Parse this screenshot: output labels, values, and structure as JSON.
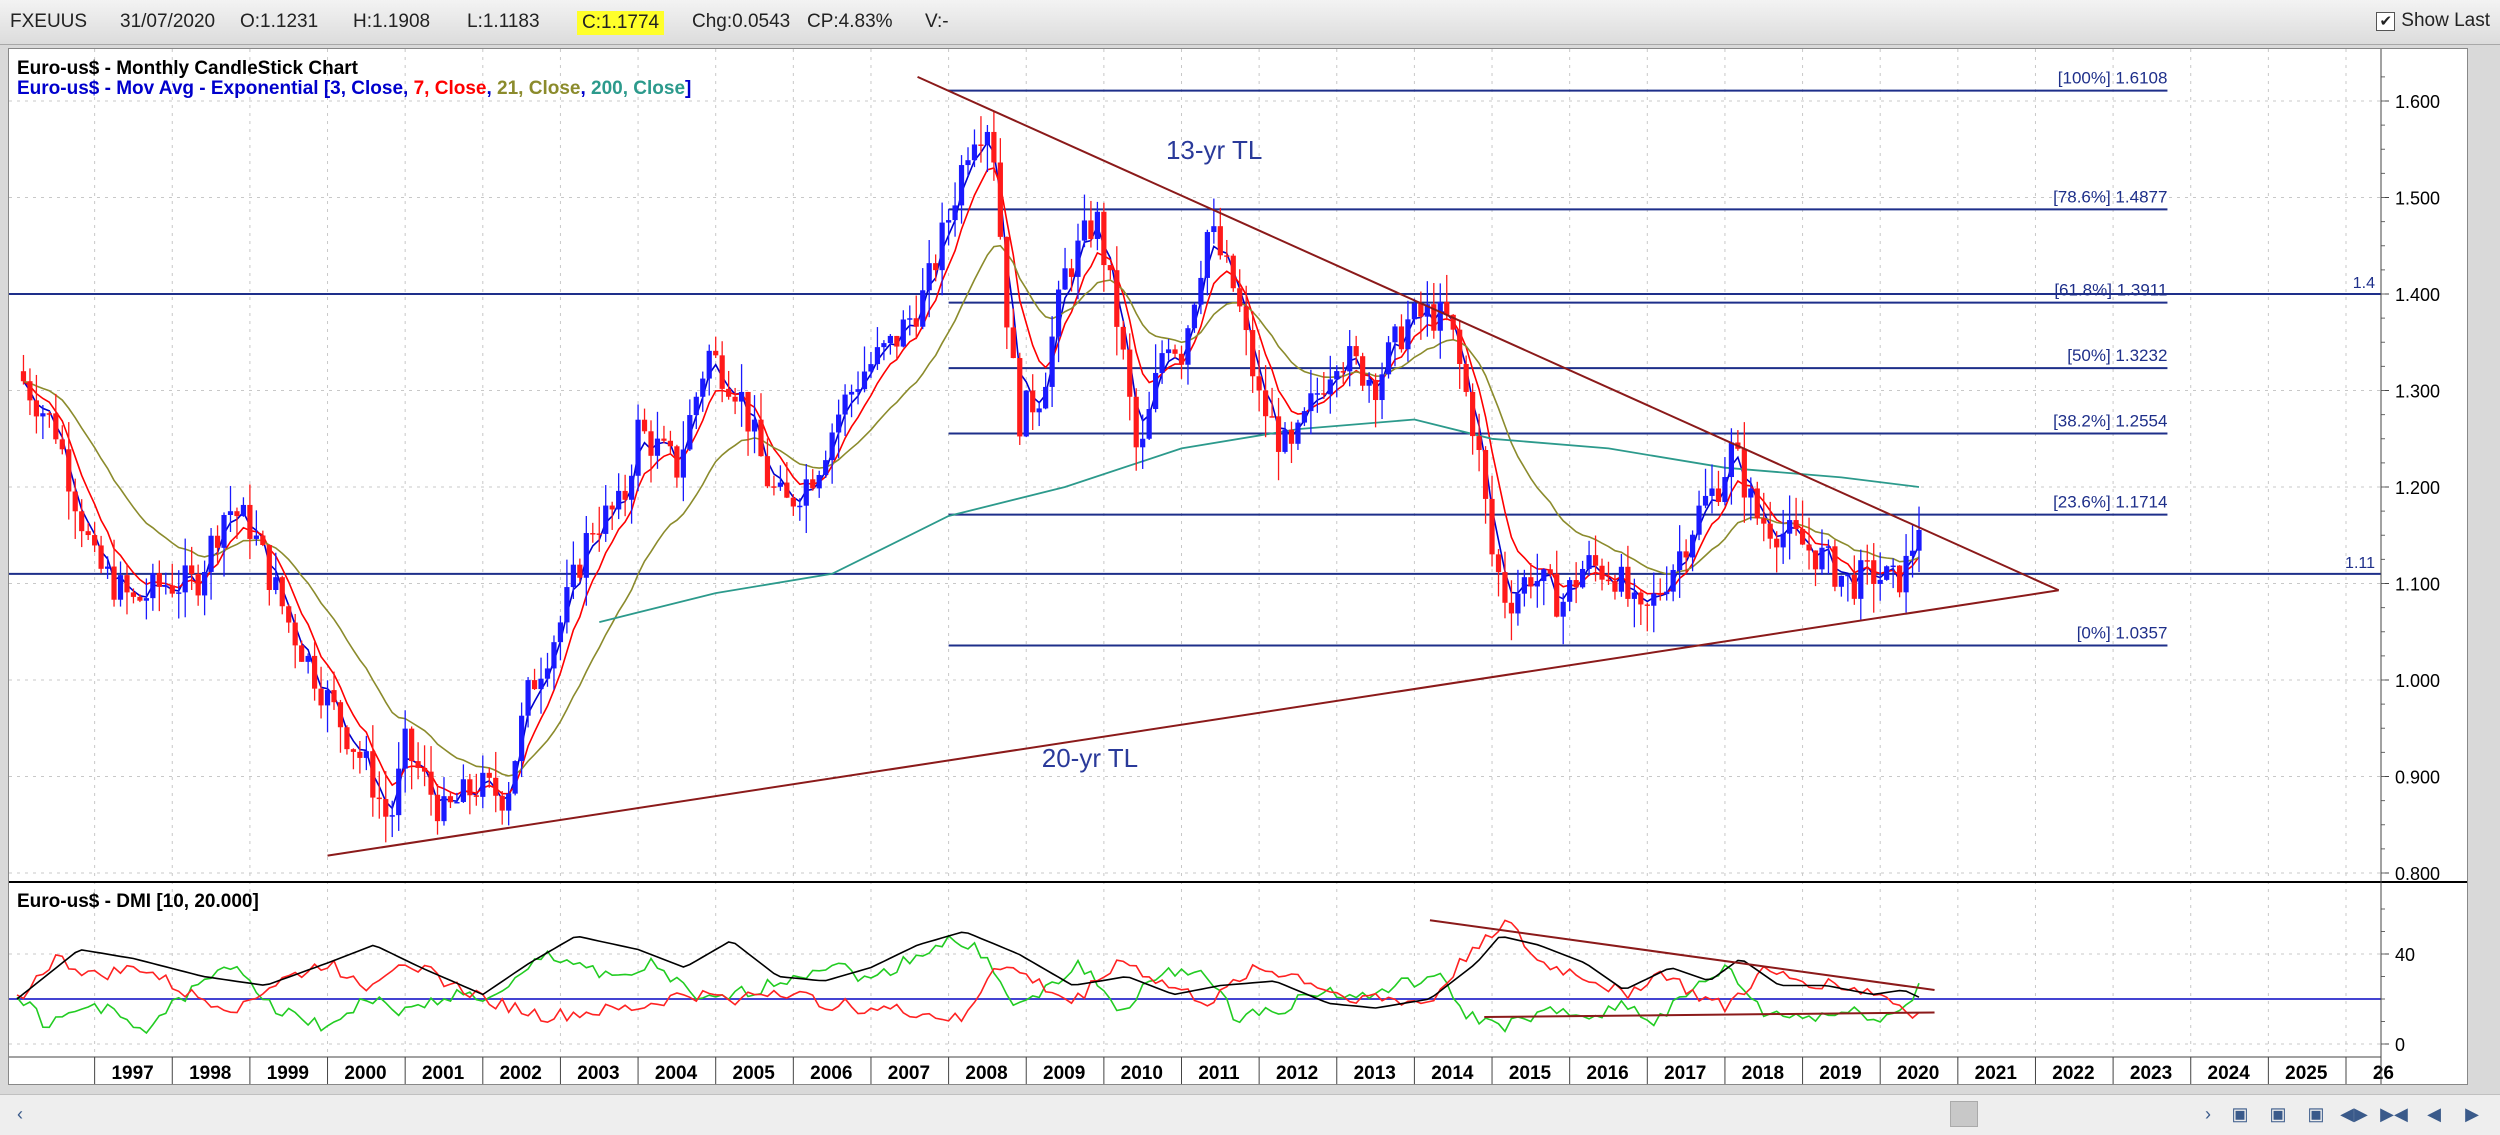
{
  "toolbar": {
    "symbol": "FXEUUS",
    "date": "31/07/2020",
    "open": "O:1.1231",
    "high": "H:1.1908",
    "low": "L:1.1183",
    "close": "C:1.1774",
    "change": "Chg:0.0543",
    "change_pct": "CP:4.83%",
    "volume": "V:-",
    "show_last_label": "Show Last",
    "show_last_checked": "✔"
  },
  "colors": {
    "bull_candle": "#1a1aff",
    "bear_candle": "#ff1a1a",
    "ema3": "#0000cc",
    "ema7": "#ff0000",
    "ema21": "#8b8b2c",
    "ema200": "#2c9a8c",
    "fib_line": "#1e2f8a",
    "trendline": "#8b1a1a",
    "dmi_adx": "#000000",
    "dmi_plus": "#22cc22",
    "dmi_minus": "#ff2222"
  },
  "chart_data": [
    {
      "type": "candlestick",
      "title": "Euro-us$ - Monthly CandleStick Chart",
      "subtitle_prefix": "Euro-us$ - Mov Avg - Exponential [",
      "subtitle_parts": [
        {
          "text": "3, Close",
          "color": "#0000cc"
        },
        {
          "text": ", ",
          "color": "#0000cc"
        },
        {
          "text": "7, Close",
          "color": "#ff0000"
        },
        {
          "text": ", ",
          "color": "#0000cc"
        },
        {
          "text": "21, Close",
          "color": "#8b8b2c"
        },
        {
          "text": ", ",
          "color": "#0000cc"
        },
        {
          "text": "200, Close",
          "color": "#2c9a8c"
        },
        {
          "text": "]",
          "color": "#0000cc"
        }
      ],
      "x_range": [
        1996.0,
        2026.0
      ],
      "ylim": [
        0.8,
        1.64
      ],
      "y_ticks": [
        "0.800",
        "0.900",
        "1.000",
        "1.100",
        "1.200",
        "1.300",
        "1.400",
        "1.500",
        "1.600"
      ],
      "x_tick_labels": [
        "1997",
        "1998",
        "1999",
        "2000",
        "2001",
        "2002",
        "2003",
        "2004",
        "2005",
        "2006",
        "2007",
        "2008",
        "2009",
        "2010",
        "2011",
        "2012",
        "2013",
        "2014",
        "2015",
        "2016",
        "2017",
        "2018",
        "2019",
        "2020",
        "2021",
        "2022",
        "2023",
        "2024",
        "2025",
        "26"
      ],
      "price_path": [
        [
          1996.0,
          1.32
        ],
        [
          1996.5,
          1.26
        ],
        [
          1997.0,
          1.12
        ],
        [
          1997.5,
          1.08
        ],
        [
          1997.9,
          1.1
        ],
        [
          1998.3,
          1.1
        ],
        [
          1998.7,
          1.18
        ],
        [
          1999.0,
          1.16
        ],
        [
          1999.5,
          1.06
        ],
        [
          2000.0,
          0.98
        ],
        [
          2000.5,
          0.91
        ],
        [
          2000.8,
          0.85
        ],
        [
          2001.0,
          0.93
        ],
        [
          2001.5,
          0.86
        ],
        [
          2001.9,
          0.89
        ],
        [
          2002.3,
          0.88
        ],
        [
          2002.6,
          0.99
        ],
        [
          2003.0,
          1.06
        ],
        [
          2003.4,
          1.16
        ],
        [
          2003.8,
          1.18
        ],
        [
          2004.0,
          1.26
        ],
        [
          2004.5,
          1.22
        ],
        [
          2004.9,
          1.34
        ],
        [
          2005.3,
          1.3
        ],
        [
          2005.7,
          1.2
        ],
        [
          2005.9,
          1.18
        ],
        [
          2006.3,
          1.22
        ],
        [
          2006.6,
          1.28
        ],
        [
          2006.9,
          1.32
        ],
        [
          2007.3,
          1.35
        ],
        [
          2007.7,
          1.4
        ],
        [
          2008.0,
          1.48
        ],
        [
          2008.3,
          1.57
        ],
        [
          2008.55,
          1.58
        ],
        [
          2008.75,
          1.38
        ],
        [
          2008.9,
          1.27
        ],
        [
          2009.2,
          1.3
        ],
        [
          2009.5,
          1.42
        ],
        [
          2009.9,
          1.48
        ],
        [
          2010.2,
          1.36
        ],
        [
          2010.45,
          1.22
        ],
        [
          2010.8,
          1.36
        ],
        [
          2011.0,
          1.34
        ],
        [
          2011.35,
          1.47
        ],
        [
          2011.7,
          1.4
        ],
        [
          2012.0,
          1.29
        ],
        [
          2012.4,
          1.23
        ],
        [
          2012.7,
          1.29
        ],
        [
          2013.0,
          1.34
        ],
        [
          2013.5,
          1.31
        ],
        [
          2013.9,
          1.37
        ],
        [
          2014.2,
          1.38
        ],
        [
          2014.45,
          1.37
        ],
        [
          2014.8,
          1.25
        ],
        [
          2015.0,
          1.13
        ],
        [
          2015.2,
          1.08
        ],
        [
          2015.5,
          1.11
        ],
        [
          2015.9,
          1.08
        ],
        [
          2016.2,
          1.12
        ],
        [
          2016.6,
          1.11
        ],
        [
          2016.9,
          1.06
        ],
        [
          2017.0,
          1.07
        ],
        [
          2017.4,
          1.13
        ],
        [
          2017.7,
          1.18
        ],
        [
          2017.9,
          1.2
        ],
        [
          2018.1,
          1.24
        ],
        [
          2018.4,
          1.17
        ],
        [
          2018.8,
          1.15
        ],
        [
          2019.2,
          1.13
        ],
        [
          2019.6,
          1.1
        ],
        [
          2019.9,
          1.11
        ],
        [
          2020.2,
          1.1
        ],
        [
          2020.35,
          1.12
        ],
        [
          2020.55,
          1.18
        ]
      ],
      "ema200_path": [
        [
          2003.5,
          1.06
        ],
        [
          2005.0,
          1.09
        ],
        [
          2006.5,
          1.11
        ],
        [
          2008.0,
          1.17
        ],
        [
          2009.5,
          1.2
        ],
        [
          2011.0,
          1.24
        ],
        [
          2012.5,
          1.26
        ],
        [
          2014.0,
          1.27
        ],
        [
          2015.0,
          1.25
        ],
        [
          2016.5,
          1.24
        ],
        [
          2018.0,
          1.22
        ],
        [
          2019.5,
          1.21
        ],
        [
          2020.5,
          1.2
        ]
      ],
      "fib_levels": [
        {
          "label": "[100%] 1.6108",
          "value": 1.6108
        },
        {
          "label": "[78.6%] 1.4877",
          "value": 1.4877
        },
        {
          "label": "[61.8%] 1.3911",
          "value": 1.3911
        },
        {
          "label": "[50%] 1.3232",
          "value": 1.3232
        },
        {
          "label": "[38.2%] 1.2554",
          "value": 1.2554
        },
        {
          "label": "[23.6%] 1.1714",
          "value": 1.1714
        },
        {
          "label": "[0%] 1.0357",
          "value": 1.0357
        }
      ],
      "fib_x_range": [
        2008.0,
        2023.7
      ],
      "horizontal_lines": [
        {
          "label": "1.4",
          "value": 1.4
        },
        {
          "label": "1.11",
          "value": 1.11
        }
      ],
      "trendlines": [
        {
          "label": "13-yr TL",
          "from": [
            2007.6,
            1.625
          ],
          "to": [
            2022.3,
            1.093
          ]
        },
        {
          "label": "20-yr TL",
          "from": [
            2000.0,
            0.818
          ],
          "to": [
            2022.3,
            1.093
          ]
        }
      ],
      "trendline_labels": [
        {
          "text": "13-yr TL",
          "at": [
            2010.8,
            1.54
          ]
        },
        {
          "text": "20-yr TL",
          "at": [
            2009.2,
            0.91
          ]
        }
      ]
    },
    {
      "type": "line",
      "title": "Euro-us$ - DMI [10, 20.000]",
      "ylim": [
        -5,
        60
      ],
      "y_ticks": [
        "40",
        "0"
      ],
      "reference_level": 20,
      "series": [
        {
          "key": "adx",
          "values": [
            [
              1996.0,
              20
            ],
            [
              1996.8,
              42
            ],
            [
              1997.5,
              38
            ],
            [
              1998.4,
              30
            ],
            [
              1999.2,
              26
            ],
            [
              2000.0,
              36
            ],
            [
              2000.6,
              44
            ],
            [
              2001.2,
              34
            ],
            [
              2002.0,
              22
            ],
            [
              2002.6,
              36
            ],
            [
              2003.2,
              48
            ],
            [
              2004.0,
              42
            ],
            [
              2004.6,
              34
            ],
            [
              2005.2,
              46
            ],
            [
              2005.8,
              30
            ],
            [
              2006.4,
              28
            ],
            [
              2007.0,
              34
            ],
            [
              2007.6,
              44
            ],
            [
              2008.2,
              50
            ],
            [
              2008.9,
              40
            ],
            [
              2009.6,
              26
            ],
            [
              2010.3,
              30
            ],
            [
              2010.9,
              22
            ],
            [
              2011.5,
              26
            ],
            [
              2012.2,
              28
            ],
            [
              2012.9,
              18
            ],
            [
              2013.5,
              16
            ],
            [
              2014.2,
              20
            ],
            [
              2014.8,
              36
            ],
            [
              2015.1,
              48
            ],
            [
              2015.6,
              44
            ],
            [
              2016.2,
              36
            ],
            [
              2016.7,
              24
            ],
            [
              2017.3,
              34
            ],
            [
              2017.8,
              28
            ],
            [
              2018.2,
              38
            ],
            [
              2018.7,
              26
            ],
            [
              2019.3,
              26
            ],
            [
              2019.9,
              22
            ],
            [
              2020.3,
              24
            ],
            [
              2020.55,
              20
            ]
          ]
        },
        {
          "key": "plus",
          "values": [
            [
              1996.0,
              22
            ],
            [
              1996.4,
              8
            ],
            [
              1997.0,
              18
            ],
            [
              1997.6,
              6
            ],
            [
              1998.2,
              22
            ],
            [
              1998.8,
              36
            ],
            [
              1999.4,
              14
            ],
            [
              2000.0,
              8
            ],
            [
              2000.5,
              20
            ],
            [
              2001.0,
              14
            ],
            [
              2001.6,
              22
            ],
            [
              2002.2,
              20
            ],
            [
              2002.8,
              40
            ],
            [
              2003.4,
              34
            ],
            [
              2003.8,
              28
            ],
            [
              2004.2,
              36
            ],
            [
              2004.8,
              18
            ],
            [
              2005.5,
              24
            ],
            [
              2006.0,
              30
            ],
            [
              2006.5,
              36
            ],
            [
              2007.0,
              28
            ],
            [
              2007.5,
              38
            ],
            [
              2008.0,
              46
            ],
            [
              2008.5,
              40
            ],
            [
              2008.8,
              16
            ],
            [
              2009.2,
              22
            ],
            [
              2009.7,
              36
            ],
            [
              2010.2,
              14
            ],
            [
              2010.7,
              30
            ],
            [
              2011.2,
              34
            ],
            [
              2011.7,
              12
            ],
            [
              2012.3,
              16
            ],
            [
              2012.8,
              24
            ],
            [
              2013.3,
              20
            ],
            [
              2013.8,
              26
            ],
            [
              2014.3,
              30
            ],
            [
              2014.7,
              12
            ],
            [
              2015.2,
              8
            ],
            [
              2015.7,
              14
            ],
            [
              2016.2,
              12
            ],
            [
              2016.7,
              18
            ],
            [
              2017.1,
              10
            ],
            [
              2017.6,
              24
            ],
            [
              2018.0,
              34
            ],
            [
              2018.5,
              14
            ],
            [
              2019.0,
              12
            ],
            [
              2019.6,
              14
            ],
            [
              2020.1,
              12
            ],
            [
              2020.4,
              18
            ],
            [
              2020.55,
              34
            ]
          ]
        },
        {
          "key": "minus",
          "values": [
            [
              1996.0,
              20
            ],
            [
              1996.5,
              38
            ],
            [
              1997.0,
              30
            ],
            [
              1997.6,
              34
            ],
            [
              1998.2,
              22
            ],
            [
              1998.8,
              16
            ],
            [
              1999.4,
              28
            ],
            [
              2000.0,
              36
            ],
            [
              2000.5,
              26
            ],
            [
              2001.0,
              38
            ],
            [
              2001.6,
              26
            ],
            [
              2002.2,
              18
            ],
            [
              2002.8,
              12
            ],
            [
              2003.4,
              14
            ],
            [
              2004.0,
              16
            ],
            [
              2004.6,
              22
            ],
            [
              2005.2,
              20
            ],
            [
              2005.8,
              24
            ],
            [
              2006.4,
              18
            ],
            [
              2007.0,
              16
            ],
            [
              2007.6,
              14
            ],
            [
              2008.2,
              10
            ],
            [
              2008.6,
              36
            ],
            [
              2009.0,
              30
            ],
            [
              2009.6,
              18
            ],
            [
              2010.2,
              38
            ],
            [
              2010.8,
              26
            ],
            [
              2011.4,
              18
            ],
            [
              2011.9,
              34
            ],
            [
              2012.5,
              30
            ],
            [
              2013.0,
              22
            ],
            [
              2013.6,
              20
            ],
            [
              2014.2,
              18
            ],
            [
              2014.6,
              36
            ],
            [
              2014.9,
              48
            ],
            [
              2015.2,
              54
            ],
            [
              2015.6,
              36
            ],
            [
              2016.2,
              30
            ],
            [
              2016.7,
              22
            ],
            [
              2017.2,
              32
            ],
            [
              2017.6,
              22
            ],
            [
              2018.0,
              16
            ],
            [
              2018.5,
              32
            ],
            [
              2019.0,
              28
            ],
            [
              2019.5,
              26
            ],
            [
              2020.0,
              22
            ],
            [
              2020.3,
              16
            ],
            [
              2020.55,
              12
            ]
          ]
        }
      ],
      "trendlines": [
        {
          "from": [
            2014.2,
            55
          ],
          "to": [
            2020.7,
            24
          ]
        },
        {
          "from": [
            2014.9,
            12
          ],
          "to": [
            2020.7,
            14
          ]
        }
      ]
    }
  ]
}
